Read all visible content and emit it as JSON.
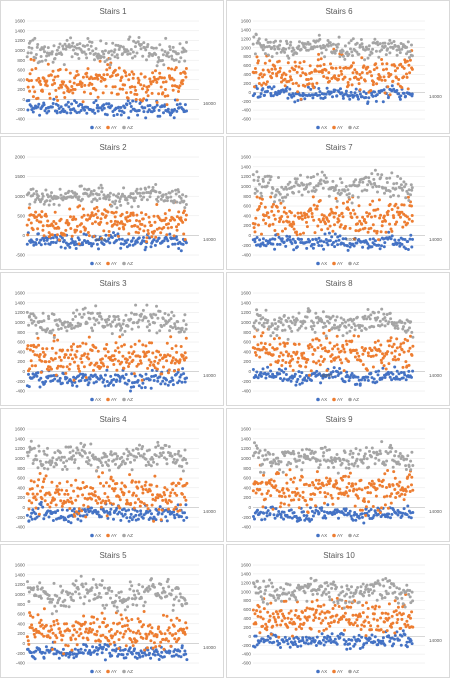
{
  "colors": {
    "AX": "#4472c4",
    "AY": "#ed7d31",
    "AZ": "#a5a5a5",
    "grid": "#e6e6e6",
    "axis": "#bfbfbf"
  },
  "chart_data": [
    {
      "type": "scatter",
      "title": "Stairs 1",
      "ylim": [
        -400,
        1600
      ],
      "yticks": [
        -400,
        -200,
        0,
        200,
        400,
        600,
        800,
        1000,
        1200,
        1400,
        1600
      ],
      "xlim": [
        0,
        16000
      ],
      "xticks": [
        16000
      ],
      "series": [
        {
          "name": "AX",
          "points": 180,
          "mean": -180,
          "spread": 80,
          "amp": 0,
          "period": 5000
        },
        {
          "name": "AY",
          "points": 230,
          "mean": 320,
          "spread": 180,
          "amp": 40,
          "period": 6500
        },
        {
          "name": "AZ",
          "points": 200,
          "mean": 980,
          "spread": 120,
          "amp": 60,
          "period": 5200
        }
      ]
    },
    {
      "type": "scatter",
      "title": "Stairs 6",
      "ylim": [
        -600,
        1600
      ],
      "yticks": [
        -600,
        -400,
        -200,
        0,
        200,
        400,
        600,
        800,
        1000,
        1200,
        1400,
        1600
      ],
      "xlim": [
        0,
        14000
      ],
      "xticks": [
        14000
      ],
      "series": [
        {
          "name": "AX",
          "points": 170,
          "mean": -40,
          "spread": 75,
          "amp": 40,
          "period": 5000
        },
        {
          "name": "AY",
          "points": 230,
          "mean": 420,
          "spread": 190,
          "amp": 60,
          "period": 6000
        },
        {
          "name": "AZ",
          "points": 200,
          "mean": 1000,
          "spread": 110,
          "amp": 60,
          "period": 5500
        }
      ]
    },
    {
      "type": "scatter",
      "title": "Stairs 2",
      "ylim": [
        -500,
        2000
      ],
      "yticks": [
        -500,
        0,
        500,
        1000,
        1500,
        2000
      ],
      "xlim": [
        0,
        14000
      ],
      "xticks": [
        6000,
        14000
      ],
      "series": [
        {
          "name": "AX",
          "points": 170,
          "mean": -150,
          "spread": 90,
          "amp": 20,
          "period": 5000
        },
        {
          "name": "AY",
          "points": 230,
          "mean": 330,
          "spread": 200,
          "amp": 40,
          "period": 6500
        },
        {
          "name": "AZ",
          "points": 200,
          "mean": 1000,
          "spread": 110,
          "amp": 60,
          "period": 5200
        }
      ]
    },
    {
      "type": "scatter",
      "title": "Stairs 7",
      "ylim": [
        -400,
        1600
      ],
      "yticks": [
        -400,
        -200,
        0,
        200,
        400,
        600,
        800,
        1000,
        1200,
        1400,
        1600
      ],
      "xlim": [
        0,
        14000
      ],
      "xticks": [
        8000,
        14000
      ],
      "series": [
        {
          "name": "AX",
          "points": 170,
          "mean": -140,
          "spread": 70,
          "amp": 30,
          "period": 5000
        },
        {
          "name": "AY",
          "points": 230,
          "mean": 370,
          "spread": 190,
          "amp": 50,
          "period": 6000
        },
        {
          "name": "AZ",
          "points": 200,
          "mean": 1000,
          "spread": 120,
          "amp": 70,
          "period": 5200
        }
      ]
    },
    {
      "type": "scatter",
      "title": "Stairs 3",
      "ylim": [
        -400,
        1600
      ],
      "yticks": [
        -400,
        -200,
        0,
        200,
        400,
        600,
        800,
        1000,
        1200,
        1400,
        1600
      ],
      "xlim": [
        0,
        14000
      ],
      "xticks": [
        14000
      ],
      "series": [
        {
          "name": "AX",
          "points": 170,
          "mean": -160,
          "spread": 80,
          "amp": 20,
          "period": 5000
        },
        {
          "name": "AY",
          "points": 230,
          "mean": 300,
          "spread": 180,
          "amp": 40,
          "period": 6500
        },
        {
          "name": "AZ",
          "points": 200,
          "mean": 1010,
          "spread": 120,
          "amp": 70,
          "period": 5200
        }
      ]
    },
    {
      "type": "scatter",
      "title": "Stairs 8",
      "ylim": [
        -400,
        1600
      ],
      "yticks": [
        -400,
        -200,
        0,
        200,
        400,
        600,
        800,
        1000,
        1200,
        1400,
        1600
      ],
      "xlim": [
        0,
        14000
      ],
      "xticks": [
        6000,
        14000
      ],
      "series": [
        {
          "name": "AX",
          "points": 170,
          "mean": -100,
          "spread": 70,
          "amp": 40,
          "period": 5000
        },
        {
          "name": "AY",
          "points": 230,
          "mean": 380,
          "spread": 190,
          "amp": 50,
          "period": 6000
        },
        {
          "name": "AZ",
          "points": 200,
          "mean": 1000,
          "spread": 110,
          "amp": 70,
          "period": 5200
        }
      ]
    },
    {
      "type": "scatter",
      "title": "Stairs 4",
      "ylim": [
        -400,
        1600
      ],
      "yticks": [
        -400,
        -200,
        0,
        200,
        400,
        600,
        800,
        1000,
        1200,
        1400,
        1600
      ],
      "xlim": [
        0,
        14000
      ],
      "xticks": [
        14000
      ],
      "series": [
        {
          "name": "AX",
          "points": 170,
          "mean": -130,
          "spread": 80,
          "amp": 30,
          "period": 5000
        },
        {
          "name": "AY",
          "points": 230,
          "mean": 250,
          "spread": 190,
          "amp": 50,
          "period": 6500
        },
        {
          "name": "AZ",
          "points": 200,
          "mean": 1020,
          "spread": 130,
          "amp": 70,
          "period": 5200
        }
      ]
    },
    {
      "type": "scatter",
      "title": "Stairs 9",
      "ylim": [
        -400,
        1600
      ],
      "yticks": [
        -400,
        -200,
        0,
        200,
        400,
        600,
        800,
        1000,
        1200,
        1400,
        1600
      ],
      "xlim": [
        0,
        14000
      ],
      "xticks": [
        14000
      ],
      "series": [
        {
          "name": "AX",
          "points": 170,
          "mean": -130,
          "spread": 70,
          "amp": 30,
          "period": 5000
        },
        {
          "name": "AY",
          "points": 230,
          "mean": 380,
          "spread": 190,
          "amp": 50,
          "period": 6000
        },
        {
          "name": "AZ",
          "points": 200,
          "mean": 1000,
          "spread": 120,
          "amp": 70,
          "period": 5200
        }
      ]
    },
    {
      "type": "scatter",
      "title": "Stairs 5",
      "ylim": [
        -400,
        1600
      ],
      "yticks": [
        -400,
        -200,
        0,
        200,
        400,
        600,
        800,
        1000,
        1200,
        1400,
        1600
      ],
      "xlim": [
        0,
        14000
      ],
      "xticks": [
        14000
      ],
      "series": [
        {
          "name": "AX",
          "points": 170,
          "mean": -180,
          "spread": 70,
          "amp": 20,
          "period": 5000
        },
        {
          "name": "AY",
          "points": 230,
          "mean": 250,
          "spread": 180,
          "amp": 40,
          "period": 6500
        },
        {
          "name": "AZ",
          "points": 200,
          "mean": 1000,
          "spread": 130,
          "amp": 70,
          "period": 5200
        }
      ]
    },
    {
      "type": "scatter",
      "title": "Stairs 10",
      "ylim": [
        -600,
        1600
      ],
      "yticks": [
        -600,
        -400,
        -200,
        0,
        200,
        400,
        600,
        800,
        1000,
        1200,
        1400,
        1600
      ],
      "xlim": [
        0,
        14000
      ],
      "xticks": [
        14000
      ],
      "series": [
        {
          "name": "AX",
          "points": 170,
          "mean": -100,
          "spread": 80,
          "amp": 30,
          "period": 5000
        },
        {
          "name": "AY",
          "points": 230,
          "mean": 400,
          "spread": 190,
          "amp": 50,
          "period": 6000
        },
        {
          "name": "AZ",
          "points": 200,
          "mean": 1000,
          "spread": 120,
          "amp": 70,
          "period": 5200
        }
      ]
    }
  ]
}
